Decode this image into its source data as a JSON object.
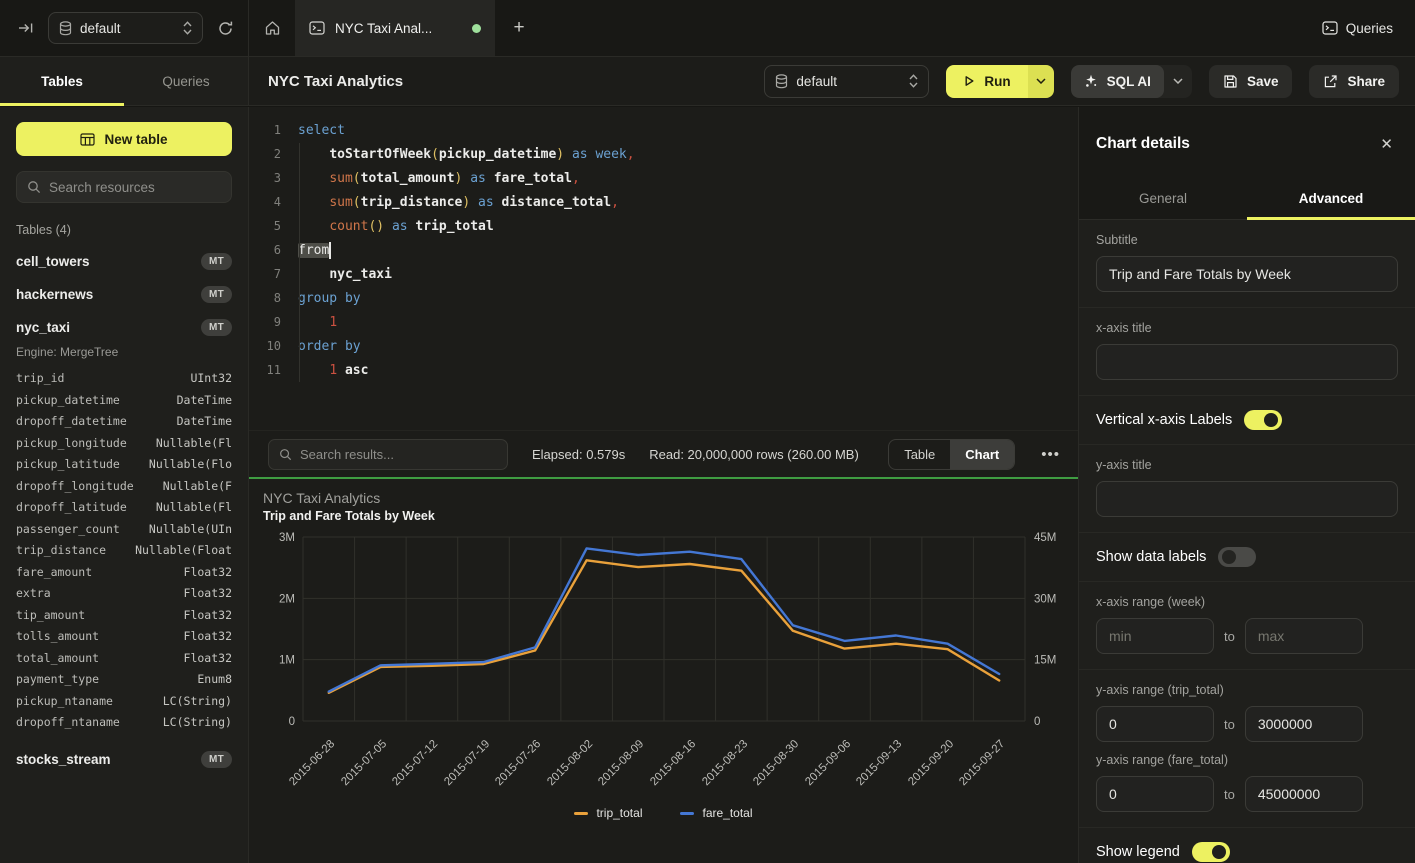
{
  "topbar": {
    "database_selector": "default",
    "tab_title": "NYC Taxi Anal...",
    "queries_label": "Queries"
  },
  "sidebar": {
    "tabs": [
      "Tables",
      "Queries"
    ],
    "active_tab": "Tables",
    "new_table_label": "New table",
    "search_placeholder": "Search resources",
    "section_label": "Tables (4)",
    "tables": [
      {
        "name": "cell_towers",
        "badge": "MT"
      },
      {
        "name": "hackernews",
        "badge": "MT"
      },
      {
        "name": "nyc_taxi",
        "badge": "MT",
        "engine": "Engine: MergeTree",
        "columns": [
          {
            "name": "trip_id",
            "type": "UInt32"
          },
          {
            "name": "pickup_datetime",
            "type": "DateTime"
          },
          {
            "name": "dropoff_datetime",
            "type": "DateTime"
          },
          {
            "name": "pickup_longitude",
            "type": "Nullable(Fl"
          },
          {
            "name": "pickup_latitude",
            "type": "Nullable(Flo"
          },
          {
            "name": "dropoff_longitude",
            "type": "Nullable(F"
          },
          {
            "name": "dropoff_latitude",
            "type": "Nullable(Fl"
          },
          {
            "name": "passenger_count",
            "type": "Nullable(UIn"
          },
          {
            "name": "trip_distance",
            "type": "Nullable(Float"
          },
          {
            "name": "fare_amount",
            "type": "Float32"
          },
          {
            "name": "extra",
            "type": "Float32"
          },
          {
            "name": "tip_amount",
            "type": "Float32"
          },
          {
            "name": "tolls_amount",
            "type": "Float32"
          },
          {
            "name": "total_amount",
            "type": "Float32"
          },
          {
            "name": "payment_type",
            "type": "Enum8"
          },
          {
            "name": "pickup_ntaname",
            "type": "LC(String)"
          },
          {
            "name": "dropoff_ntaname",
            "type": "LC(String)"
          }
        ]
      },
      {
        "name": "stocks_stream",
        "badge": "MT",
        "gap": true
      }
    ]
  },
  "toolbar": {
    "title": "NYC Taxi Analytics",
    "database_selector": "default",
    "run_label": "Run",
    "sql_ai_label": "SQL AI",
    "save_label": "Save",
    "share_label": "Share"
  },
  "editor": {
    "lines": [
      {
        "num": "1",
        "tokens": [
          [
            "kw",
            "select"
          ]
        ]
      },
      {
        "num": "2",
        "tokens": [
          [
            "pl",
            "    "
          ],
          [
            "id",
            "toStartOfWeek"
          ],
          [
            "par",
            "("
          ],
          [
            "id",
            "pickup_datetime"
          ],
          [
            "par",
            ")"
          ],
          [
            "pl",
            " "
          ],
          [
            "kw",
            "as"
          ],
          [
            "pl",
            " "
          ],
          [
            "kw",
            "week"
          ],
          [
            "pun",
            ","
          ]
        ]
      },
      {
        "num": "3",
        "tokens": [
          [
            "pl",
            "    "
          ],
          [
            "fn",
            "sum"
          ],
          [
            "par",
            "("
          ],
          [
            "id",
            "total_amount"
          ],
          [
            "par",
            ")"
          ],
          [
            "pl",
            " "
          ],
          [
            "kw",
            "as"
          ],
          [
            "pl",
            " "
          ],
          [
            "id",
            "fare_total"
          ],
          [
            "pun",
            ","
          ]
        ]
      },
      {
        "num": "4",
        "tokens": [
          [
            "pl",
            "    "
          ],
          [
            "fn",
            "sum"
          ],
          [
            "par",
            "("
          ],
          [
            "id",
            "trip_distance"
          ],
          [
            "par",
            ")"
          ],
          [
            "pl",
            " "
          ],
          [
            "kw",
            "as"
          ],
          [
            "pl",
            " "
          ],
          [
            "id",
            "distance_total"
          ],
          [
            "pun",
            ","
          ]
        ]
      },
      {
        "num": "5",
        "tokens": [
          [
            "pl",
            "    "
          ],
          [
            "fn",
            "count"
          ],
          [
            "par",
            "()"
          ],
          [
            "pl",
            " "
          ],
          [
            "kw",
            "as"
          ],
          [
            "pl",
            " "
          ],
          [
            "id",
            "trip_total"
          ]
        ]
      },
      {
        "num": "6",
        "tokens": [
          [
            "sel",
            "from"
          ],
          [
            "cur",
            ""
          ]
        ]
      },
      {
        "num": "7",
        "tokens": [
          [
            "pl",
            "    "
          ],
          [
            "id",
            "nyc_taxi"
          ]
        ]
      },
      {
        "num": "8",
        "tokens": [
          [
            "kw",
            "group by"
          ]
        ]
      },
      {
        "num": "9",
        "tokens": [
          [
            "pl",
            "    "
          ],
          [
            "num",
            "1"
          ]
        ]
      },
      {
        "num": "10",
        "tokens": [
          [
            "kw",
            "order by"
          ]
        ]
      },
      {
        "num": "11",
        "tokens": [
          [
            "pl",
            "    "
          ],
          [
            "num",
            "1"
          ],
          [
            "pl",
            " "
          ],
          [
            "id",
            "asc"
          ]
        ]
      }
    ]
  },
  "results": {
    "search_placeholder": "Search results...",
    "elapsed": "Elapsed: 0.579s",
    "read": "Read: 20,000,000 rows (260.00 MB)",
    "view_options": [
      "Table",
      "Chart"
    ],
    "active_view": "Chart",
    "more_label": "•••"
  },
  "chart_data": {
    "type": "line",
    "title": "NYC Taxi Analytics",
    "subtitle": "Trip and Fare Totals by Week",
    "categories": [
      "2015-06-28",
      "2015-07-05",
      "2015-07-12",
      "2015-07-19",
      "2015-07-26",
      "2015-08-02",
      "2015-08-09",
      "2015-08-16",
      "2015-08-23",
      "2015-08-30",
      "2015-09-06",
      "2015-09-13",
      "2015-09-20",
      "2015-09-27"
    ],
    "series": [
      {
        "name": "trip_total",
        "axis": "left",
        "color": "#E9A13B",
        "values": [
          460000,
          880000,
          900000,
          930000,
          1150000,
          2620000,
          2510000,
          2560000,
          2450000,
          1470000,
          1180000,
          1260000,
          1170000,
          660000
        ]
      },
      {
        "name": "fare_total",
        "axis": "right",
        "color": "#4477D4",
        "values": [
          7200000,
          13600000,
          14000000,
          14400000,
          18000000,
          42200000,
          40600000,
          41400000,
          39600000,
          23400000,
          19600000,
          20900000,
          18900000,
          11500000
        ]
      }
    ],
    "y_left": {
      "max": 3000000,
      "ticks": [
        "0",
        "1M",
        "2M",
        "3M"
      ]
    },
    "y_right": {
      "max": 45000000,
      "ticks": [
        "0",
        "15M",
        "30M",
        "45M"
      ]
    },
    "grid": true,
    "legend_position": "bottom"
  },
  "panel": {
    "title": "Chart details",
    "tabs": [
      "General",
      "Advanced"
    ],
    "active_tab": "Advanced",
    "subtitle": {
      "label": "Subtitle",
      "value": "Trip and Fare Totals by Week"
    },
    "x_axis_title": {
      "label": "x-axis title",
      "value": ""
    },
    "vertical_labels": {
      "label": "Vertical x-axis Labels",
      "on": true
    },
    "y_axis_title": {
      "label": "y-axis title",
      "value": ""
    },
    "data_labels": {
      "label": "Show data labels",
      "on": false
    },
    "x_range": {
      "label": "x-axis range (week)",
      "min_placeholder": "min",
      "max_placeholder": "max",
      "to": "to"
    },
    "y_range_trip": {
      "label": "y-axis range (trip_total)",
      "min": "0",
      "max": "3000000",
      "to": "to"
    },
    "y_range_fare": {
      "label": "y-axis range (fare_total)",
      "min": "0",
      "max": "45000000",
      "to": "to"
    },
    "legend_toggle": {
      "label": "Show legend",
      "on": true
    }
  }
}
